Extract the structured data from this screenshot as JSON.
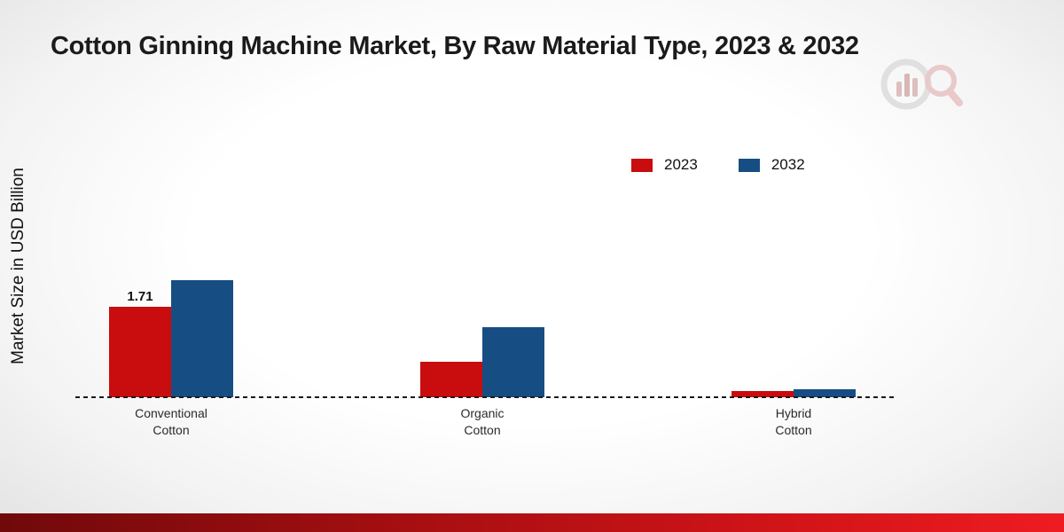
{
  "title": "Cotton Ginning Machine Market, By Raw Material Type, 2023 & 2032",
  "ylabel": "Market Size in USD Billion",
  "colors": {
    "series_2023": "#c90c0e",
    "series_2032": "#164e84",
    "footer_gradient_left": "#70090b",
    "footer_gradient_right": "#ee1c22",
    "baseline": "#1a1a1a"
  },
  "chart_data": {
    "type": "bar",
    "title": "Cotton Ginning Machine Market, By Raw Material Type, 2023 & 2032",
    "ylabel": "Market Size in USD Billion",
    "xlabel": "",
    "categories": [
      "Conventional\nCotton",
      "Organic\nCotton",
      "Hybrid\nCotton"
    ],
    "series": [
      {
        "name": "2023",
        "color": "#c90c0e",
        "values": [
          1.71,
          0.68,
          0.12
        ],
        "data_labels": [
          "1.71",
          "",
          ""
        ]
      },
      {
        "name": "2032",
        "color": "#164e84",
        "values": [
          2.22,
          1.33,
          0.15
        ],
        "data_labels": [
          "",
          "",
          ""
        ]
      }
    ],
    "ylim": [
      0,
      4.4
    ],
    "grid": false,
    "baseline_style": "dashed",
    "legend_position": "top-right"
  }
}
